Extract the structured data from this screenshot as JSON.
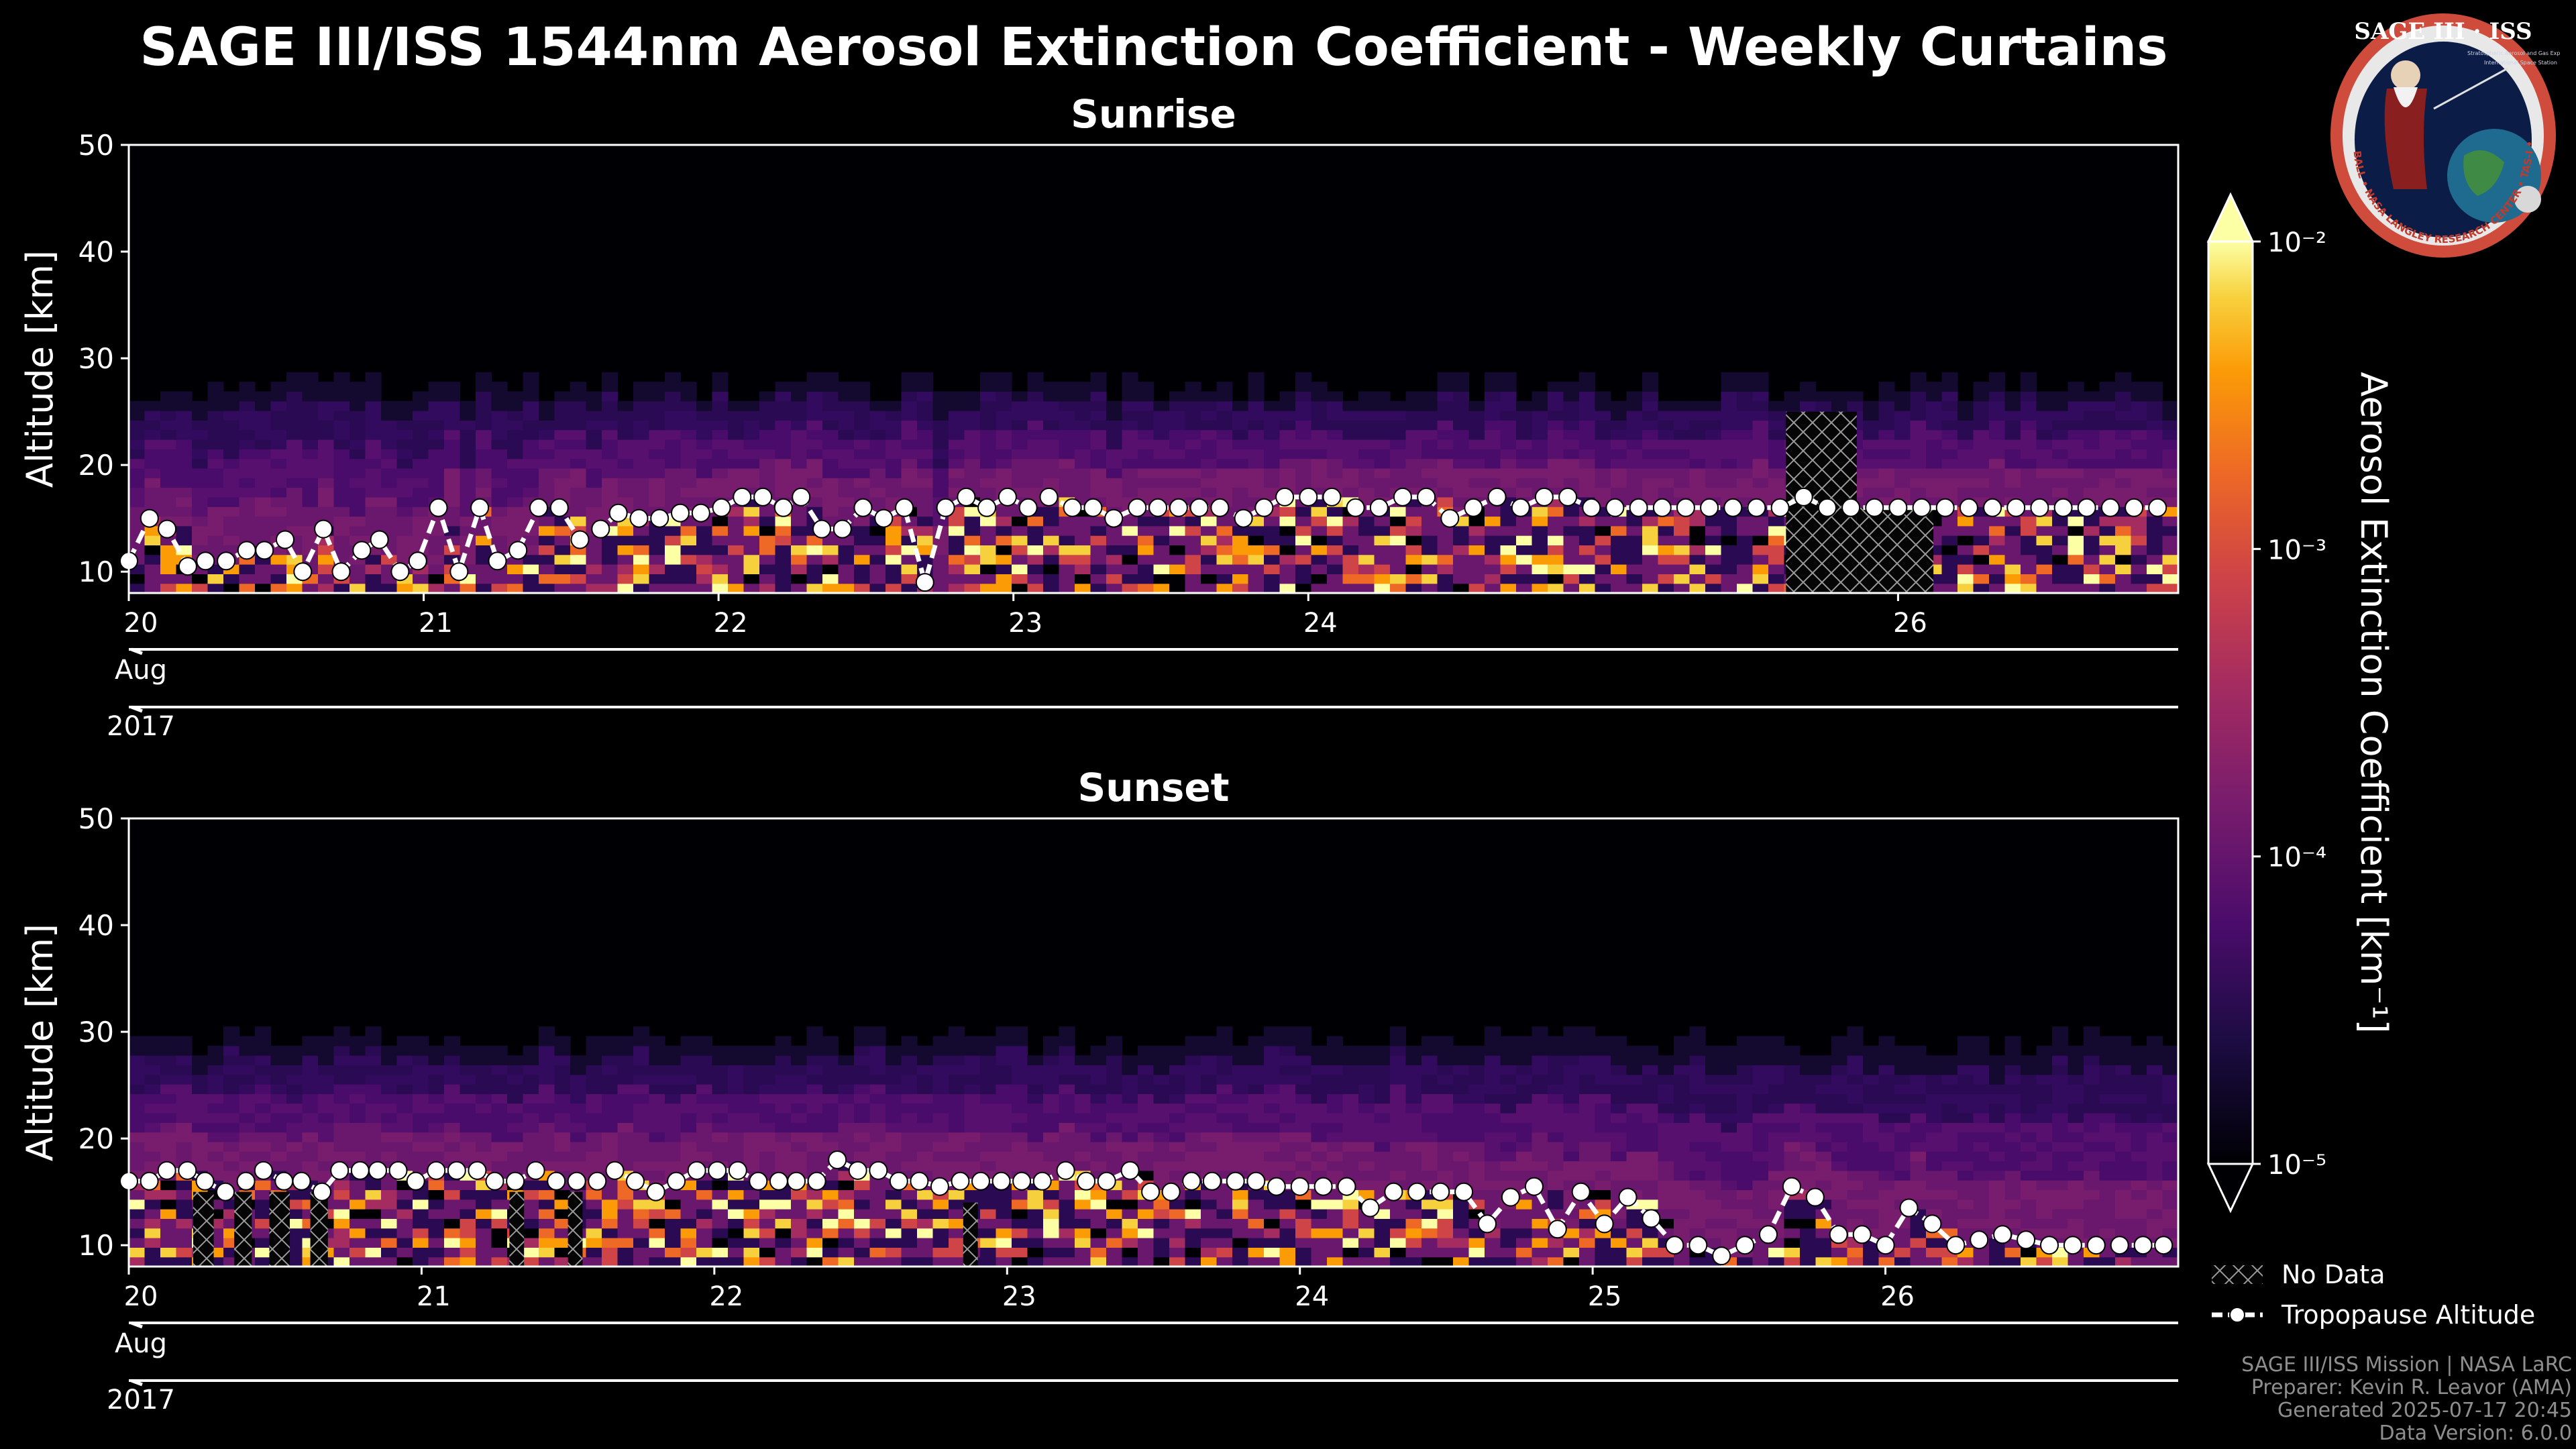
{
  "title": "SAGE III/ISS 1544nm Aerosol Extinction Coefficient - Weekly Curtains",
  "chart_data": [
    {
      "type": "heatmap",
      "title": "Sunrise",
      "ylabel": "Altitude [km]",
      "ylim": [
        8,
        50
      ],
      "yticks": [
        10,
        20,
        30,
        40,
        50
      ],
      "x_day_range": [
        20.0,
        26.95
      ],
      "x_day_ticks": [
        {
          "day": 20.0,
          "label": "20"
        },
        {
          "day": 21.0,
          "label": "21"
        },
        {
          "day": 22.0,
          "label": "22"
        },
        {
          "day": 23.0,
          "label": "23"
        },
        {
          "day": 24.0,
          "label": "24"
        },
        {
          "day": 26.0,
          "label": "26"
        }
      ],
      "month_label": "Aug",
      "year_label": "2017",
      "aerosol_top_km": 27,
      "no_data_columns": [
        {
          "day_start": 25.62,
          "day_end": 25.86,
          "top_km": 25
        },
        {
          "day_start": 25.86,
          "day_end": 26.12,
          "top_km": 16
        }
      ],
      "tropopause": {
        "days": [
          20.0,
          20.07,
          20.13,
          20.2,
          20.26,
          20.33,
          20.4,
          20.46,
          20.53,
          20.59,
          20.66,
          20.72,
          20.79,
          20.85,
          20.92,
          20.98,
          21.05,
          21.12,
          21.19,
          21.25,
          21.32,
          21.39,
          21.46,
          21.53,
          21.6,
          21.66,
          21.73,
          21.8,
          21.87,
          21.94,
          22.01,
          22.08,
          22.15,
          22.22,
          22.28,
          22.35,
          22.42,
          22.49,
          22.56,
          22.63,
          22.7,
          22.77,
          22.84,
          22.91,
          22.98,
          23.05,
          23.12,
          23.2,
          23.27,
          23.34,
          23.42,
          23.49,
          23.56,
          23.63,
          23.7,
          23.78,
          23.85,
          23.92,
          24.0,
          24.08,
          24.16,
          24.24,
          24.32,
          24.4,
          24.48,
          24.56,
          24.64,
          24.72,
          24.8,
          24.88,
          24.96,
          25.04,
          25.12,
          25.2,
          25.28,
          25.36,
          25.44,
          25.52,
          25.6,
          25.68,
          25.76,
          25.84,
          25.92,
          26.0,
          26.08,
          26.16,
          26.24,
          26.32,
          26.4,
          26.48,
          26.56,
          26.64,
          26.72,
          26.8,
          26.88
        ],
        "altitude_km": [
          11,
          15,
          14,
          10.5,
          11,
          11,
          12,
          12,
          13,
          10,
          14,
          10,
          12,
          13,
          10,
          11,
          16,
          10,
          16,
          11,
          12,
          16,
          16,
          13,
          14,
          15.5,
          15,
          15,
          15.5,
          15.5,
          16,
          17,
          17,
          16,
          17,
          14,
          14,
          16,
          15,
          16,
          9,
          16,
          17,
          16,
          17,
          16,
          17,
          16,
          16,
          15,
          16,
          16,
          16,
          16,
          16,
          15,
          16,
          17,
          17,
          17,
          16,
          16,
          17,
          17,
          15,
          16,
          17,
          16,
          17,
          17,
          16,
          16,
          16,
          16,
          16,
          16,
          16,
          16,
          16,
          17,
          16,
          16,
          16,
          16,
          16,
          16,
          16,
          16,
          16,
          16,
          16,
          16,
          16,
          16,
          16
        ]
      }
    },
    {
      "type": "heatmap",
      "title": "Sunset",
      "ylabel": "Altitude [km]",
      "ylim": [
        8,
        50
      ],
      "yticks": [
        10,
        20,
        30,
        40,
        50
      ],
      "x_day_range": [
        20.0,
        27.0
      ],
      "x_day_ticks": [
        {
          "day": 20.0,
          "label": "20"
        },
        {
          "day": 21.0,
          "label": "21"
        },
        {
          "day": 22.0,
          "label": "22"
        },
        {
          "day": 23.0,
          "label": "23"
        },
        {
          "day": 24.0,
          "label": "24"
        },
        {
          "day": 25.0,
          "label": "25"
        },
        {
          "day": 26.0,
          "label": "26"
        }
      ],
      "month_label": "Aug",
      "year_label": "2017",
      "aerosol_top_km": 29,
      "no_data_columns": [
        {
          "day_start": 20.22,
          "day_end": 20.29,
          "top_km": 15
        },
        {
          "day_start": 20.36,
          "day_end": 20.42,
          "top_km": 15
        },
        {
          "day_start": 20.48,
          "day_end": 20.55,
          "top_km": 15
        },
        {
          "day_start": 20.62,
          "day_end": 20.68,
          "top_km": 15
        },
        {
          "day_start": 21.3,
          "day_end": 21.35,
          "top_km": 15
        },
        {
          "day_start": 21.5,
          "day_end": 21.55,
          "top_km": 15
        },
        {
          "day_start": 22.85,
          "day_end": 22.9,
          "top_km": 14
        }
      ],
      "tropopause": {
        "days": [
          20.0,
          20.07,
          20.13,
          20.2,
          20.26,
          20.33,
          20.4,
          20.46,
          20.53,
          20.59,
          20.66,
          20.72,
          20.79,
          20.85,
          20.92,
          20.98,
          21.05,
          21.12,
          21.19,
          21.25,
          21.32,
          21.39,
          21.46,
          21.53,
          21.6,
          21.66,
          21.73,
          21.8,
          21.87,
          21.94,
          22.01,
          22.08,
          22.15,
          22.22,
          22.28,
          22.35,
          22.42,
          22.49,
          22.56,
          22.63,
          22.7,
          22.77,
          22.84,
          22.91,
          22.98,
          23.05,
          23.12,
          23.2,
          23.27,
          23.34,
          23.42,
          23.49,
          23.56,
          23.63,
          23.7,
          23.78,
          23.85,
          23.92,
          24.0,
          24.08,
          24.16,
          24.24,
          24.32,
          24.4,
          24.48,
          24.56,
          24.64,
          24.72,
          24.8,
          24.88,
          24.96,
          25.04,
          25.12,
          25.2,
          25.28,
          25.36,
          25.44,
          25.52,
          25.6,
          25.68,
          25.76,
          25.84,
          25.92,
          26.0,
          26.08,
          26.16,
          26.24,
          26.32,
          26.4,
          26.48,
          26.56,
          26.64,
          26.72,
          26.8,
          26.88,
          26.95
        ],
        "altitude_km": [
          16,
          16,
          17,
          17,
          16,
          15,
          16,
          17,
          16,
          16,
          15,
          17,
          17,
          17,
          17,
          16,
          17,
          17,
          17,
          16,
          16,
          17,
          16,
          16,
          16,
          17,
          16,
          15,
          16,
          17,
          17,
          17,
          16,
          16,
          16,
          16,
          18,
          17,
          17,
          16,
          16,
          15.5,
          16,
          16,
          16,
          16,
          16,
          17,
          16,
          16,
          17,
          15,
          15,
          16,
          16,
          16,
          16,
          15.5,
          15.5,
          15.5,
          15.5,
          13.5,
          15,
          15,
          15,
          15,
          12,
          14.5,
          15.5,
          11.5,
          15,
          12,
          14.5,
          12.5,
          10,
          10,
          9,
          10,
          11,
          15.5,
          14.5,
          11,
          11,
          10,
          13.5,
          12,
          10,
          10.5,
          11,
          10.5,
          10,
          10,
          10,
          10,
          10,
          10
        ]
      }
    }
  ],
  "colorbar": {
    "label": "Aerosol Extinction Coefficient [km⁻¹]",
    "scale": "log",
    "range": [
      1e-05,
      0.01
    ],
    "tick_labels": [
      "10⁻²",
      "10⁻³",
      "10⁻⁴",
      "10⁻⁵"
    ],
    "tick_values": [
      0.01,
      0.001,
      0.0001,
      1e-05
    ],
    "colormap": "inferno"
  },
  "legend": {
    "no_data": "No Data",
    "tropopause": "Tropopause Altitude"
  },
  "logo": {
    "title": "SAGE III · ISS",
    "text_1": "Stratospheric Aerosol and Gas Experiment III",
    "text_2": "International Space Station",
    "ring_text": "BALL • NASA LANGLEY RESEARCH CENTER • TAS-I • ESA"
  },
  "footer": {
    "line1": "SAGE III/ISS Mission | NASA LaRC",
    "line2": "Preparer: Kevin R. Leavor (AMA)",
    "line3": "Generated 2025-07-17 20:45",
    "line4": "Data Version: 6.0.0"
  },
  "colors": {
    "background": "#000000",
    "foreground": "#ffffff",
    "footer_text": "#8e8e8e",
    "logo_ring": "#cf4b3c"
  }
}
